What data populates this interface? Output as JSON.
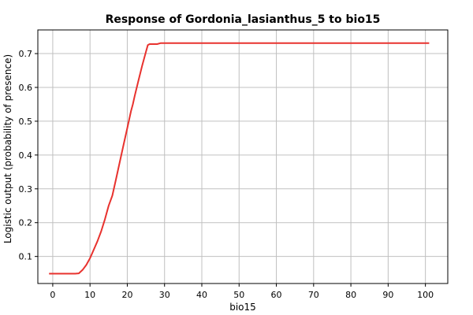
{
  "chart_data": {
    "type": "line",
    "title": "Response of Gordonia_lasianthus_5 to bio15",
    "xlabel": "bio15",
    "ylabel": "Logistic output (probability of presence)",
    "xlim": [
      -4,
      106
    ],
    "ylim": [
      0.02,
      0.77
    ],
    "x_ticks": [
      0,
      10,
      20,
      30,
      40,
      50,
      60,
      70,
      80,
      90,
      100
    ],
    "x_tick_labels": [
      "0",
      "10",
      "20",
      "30",
      "40",
      "50",
      "60",
      "70",
      "80",
      "90",
      "100"
    ],
    "y_ticks": [
      0.1,
      0.2,
      0.3,
      0.4,
      0.5,
      0.6,
      0.7
    ],
    "y_tick_labels": [
      "0.1",
      "0.2",
      "0.3",
      "0.4",
      "0.5",
      "0.6",
      "0.7"
    ],
    "grid": true,
    "legend": "none",
    "series": [
      {
        "color": "#e8322e",
        "x": [
          -1,
          0,
          2,
          4,
          6,
          7,
          8,
          9,
          10,
          11,
          12,
          13,
          14,
          15,
          16,
          17,
          18,
          19,
          20,
          21,
          21.5,
          22,
          23,
          24,
          25,
          25.5,
          26,
          27,
          28,
          29,
          30,
          40,
          50,
          60,
          70,
          80,
          90,
          100,
          101
        ],
        "y": [
          0.049,
          0.049,
          0.049,
          0.049,
          0.049,
          0.05,
          0.06,
          0.075,
          0.095,
          0.12,
          0.145,
          0.175,
          0.21,
          0.25,
          0.28,
          0.33,
          0.38,
          0.43,
          0.48,
          0.53,
          0.55,
          0.575,
          0.62,
          0.665,
          0.705,
          0.725,
          0.728,
          0.728,
          0.728,
          0.731,
          0.731,
          0.731,
          0.731,
          0.731,
          0.731,
          0.731,
          0.731,
          0.731,
          0.731
        ]
      }
    ]
  }
}
